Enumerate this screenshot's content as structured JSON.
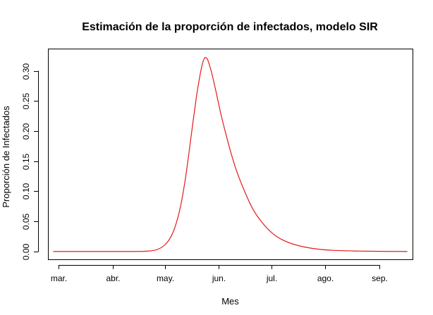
{
  "chart_data": {
    "type": "line",
    "title": "Estimación de la proporción de infectados, modelo SIR",
    "xlabel": "Mes",
    "ylabel": "Proporción de Infectados",
    "x_axis": {
      "tick_labels": [
        "mar.",
        "abr.",
        "may.",
        "jun.",
        "jul.",
        "ago.",
        "sep."
      ],
      "xlim": [
        "2020-02-24",
        "2020-09-20"
      ]
    },
    "y_axis": {
      "ticks": [
        0.0,
        0.05,
        0.1,
        0.15,
        0.2,
        0.25,
        0.3
      ],
      "tick_labels": [
        "0.00",
        "0.05",
        "0.10",
        "0.15",
        "0.20",
        "0.25",
        "0.30"
      ],
      "ylim": [
        -0.013,
        0.337
      ]
    },
    "grid": false,
    "series": [
      {
        "color": "#e41a1c",
        "points": [
          [
            "2020-02-27",
            0.0
          ],
          [
            "2020-03-10",
            0.0
          ],
          [
            "2020-03-25",
            0.0
          ],
          [
            "2020-04-10",
            0.0
          ],
          [
            "2020-04-20",
            0.0005
          ],
          [
            "2020-04-25",
            0.002
          ],
          [
            "2020-04-28",
            0.005
          ],
          [
            "2020-05-01",
            0.011
          ],
          [
            "2020-05-04",
            0.022
          ],
          [
            "2020-05-07",
            0.042
          ],
          [
            "2020-05-10",
            0.075
          ],
          [
            "2020-05-13",
            0.125
          ],
          [
            "2020-05-16",
            0.19
          ],
          [
            "2020-05-19",
            0.255
          ],
          [
            "2020-05-21",
            0.29
          ],
          [
            "2020-05-22",
            0.305
          ],
          [
            "2020-05-23",
            0.316
          ],
          [
            "2020-05-24",
            0.322
          ],
          [
            "2020-05-25",
            0.321
          ],
          [
            "2020-05-26",
            0.315
          ],
          [
            "2020-05-28",
            0.295
          ],
          [
            "2020-05-30",
            0.27
          ],
          [
            "2020-06-02",
            0.23
          ],
          [
            "2020-06-05",
            0.195
          ],
          [
            "2020-06-08",
            0.163
          ],
          [
            "2020-06-11",
            0.135
          ],
          [
            "2020-06-15",
            0.105
          ],
          [
            "2020-06-20",
            0.073
          ],
          [
            "2020-06-25",
            0.051
          ],
          [
            "2020-07-01",
            0.032
          ],
          [
            "2020-07-07",
            0.02
          ],
          [
            "2020-07-15",
            0.011
          ],
          [
            "2020-07-25",
            0.005
          ],
          [
            "2020-08-05",
            0.002
          ],
          [
            "2020-08-20",
            0.0007
          ],
          [
            "2020-09-05",
            0.0002
          ],
          [
            "2020-09-17",
            0.0
          ]
        ]
      }
    ]
  }
}
